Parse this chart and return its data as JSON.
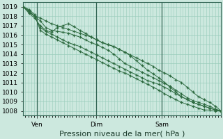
{
  "background_color": "#cce8de",
  "plot_bg_color": "#cce8de",
  "grid_color": "#99ccbb",
  "line_color": "#2d6a3f",
  "ylim": [
    1007.5,
    1019.5
  ],
  "yticks": [
    1008,
    1009,
    1010,
    1011,
    1012,
    1013,
    1014,
    1015,
    1016,
    1017,
    1018,
    1019
  ],
  "xlabel": "Pression niveau de la mer( hPa )",
  "xlabel_fontsize": 8,
  "tick_fontsize": 6.5,
  "xtick_labels": [
    "Ven",
    "Dim",
    "Sam"
  ],
  "xtick_positions": [
    0.07,
    0.37,
    0.7
  ],
  "vline_color": "#336655",
  "n_points": 36,
  "series": [
    [
      1019.0,
      1018.4,
      1018.0,
      1017.8,
      1017.5,
      1017.2,
      1017.0,
      1016.8,
      1016.6,
      1016.4,
      1016.2,
      1016.0,
      1015.8,
      1015.5,
      1015.2,
      1015.0,
      1014.8,
      1014.5,
      1014.2,
      1013.9,
      1013.6,
      1013.3,
      1013.0,
      1012.7,
      1012.3,
      1012.0,
      1011.7,
      1011.3,
      1011.0,
      1010.5,
      1010.0,
      1009.5,
      1009.2,
      1008.9,
      1008.5,
      1008.0
    ],
    [
      1019.0,
      1018.3,
      1017.8,
      1017.0,
      1016.5,
      1016.3,
      1016.8,
      1017.0,
      1017.2,
      1016.9,
      1016.5,
      1016.2,
      1015.8,
      1015.5,
      1015.2,
      1015.0,
      1014.8,
      1014.5,
      1014.2,
      1013.8,
      1013.3,
      1012.8,
      1012.3,
      1011.9,
      1011.5,
      1011.0,
      1010.5,
      1010.0,
      1009.5,
      1009.2,
      1008.9,
      1008.7,
      1008.5,
      1008.3,
      1008.1,
      1008.0
    ],
    [
      1019.0,
      1018.5,
      1018.0,
      1017.5,
      1016.8,
      1016.5,
      1016.4,
      1016.3,
      1016.2,
      1016.0,
      1015.8,
      1015.5,
      1015.2,
      1015.0,
      1014.7,
      1014.4,
      1014.0,
      1013.5,
      1013.0,
      1012.7,
      1012.4,
      1012.1,
      1011.8,
      1011.5,
      1011.2,
      1010.9,
      1010.6,
      1010.2,
      1009.8,
      1009.4,
      1009.1,
      1008.9,
      1008.7,
      1008.5,
      1008.2,
      1008.0
    ],
    [
      1019.0,
      1018.6,
      1018.0,
      1016.8,
      1016.4,
      1016.1,
      1015.8,
      1015.5,
      1015.2,
      1015.0,
      1014.8,
      1014.5,
      1014.2,
      1013.9,
      1013.6,
      1013.3,
      1013.0,
      1012.7,
      1012.4,
      1012.1,
      1011.8,
      1011.5,
      1011.2,
      1011.0,
      1010.8,
      1010.5,
      1010.2,
      1009.8,
      1009.5,
      1009.2,
      1008.9,
      1008.7,
      1008.5,
      1008.3,
      1008.1,
      1008.0
    ],
    [
      1019.0,
      1018.7,
      1018.2,
      1016.5,
      1016.1,
      1015.8,
      1015.5,
      1015.2,
      1014.9,
      1014.6,
      1014.3,
      1014.0,
      1013.7,
      1013.4,
      1013.1,
      1012.8,
      1012.5,
      1012.2,
      1012.0,
      1011.7,
      1011.4,
      1011.1,
      1010.8,
      1010.5,
      1010.2,
      1009.8,
      1009.5,
      1009.2,
      1008.9,
      1008.7,
      1008.5,
      1008.3,
      1008.1,
      1008.1,
      1008.0,
      1008.0
    ]
  ]
}
